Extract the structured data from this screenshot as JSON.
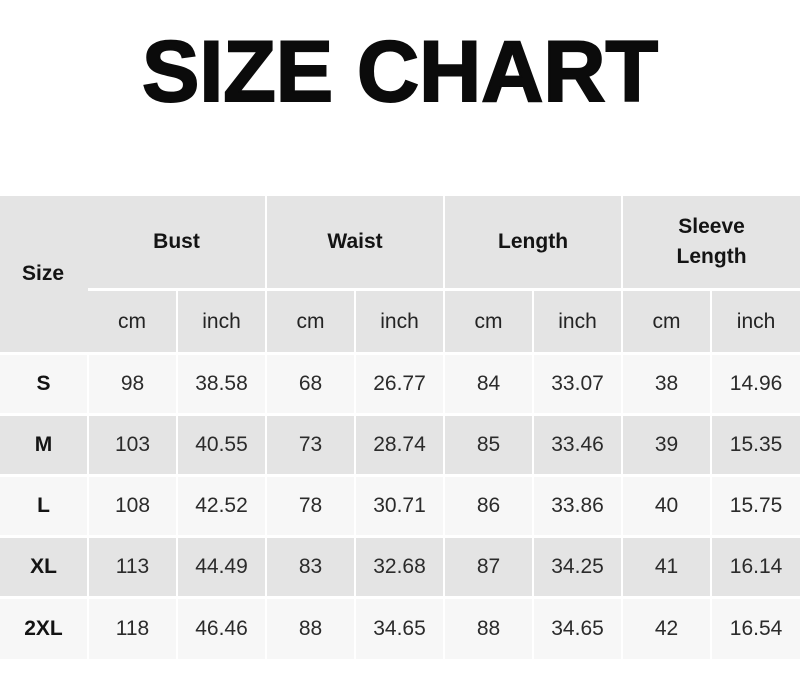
{
  "title": "SIZE CHART",
  "colors": {
    "page_bg": "#ffffff",
    "header_bg": "#e4e4e4",
    "row_light_bg": "#f7f7f7",
    "row_gray_bg": "#e4e4e4",
    "separator": "#ffffff",
    "text": "#1a1a1a"
  },
  "table": {
    "size_col_header": "Size",
    "groups": [
      {
        "label": "Bust"
      },
      {
        "label": "Waist"
      },
      {
        "label": "Length"
      },
      {
        "label": "Sleeve Length"
      }
    ],
    "unit_headers": [
      "cm",
      "inch",
      "cm",
      "inch",
      "cm",
      "inch",
      "cm",
      "inch"
    ],
    "rows": [
      {
        "size": "S",
        "cells": [
          "98",
          "38.58",
          "68",
          "26.77",
          "84",
          "33.07",
          "38",
          "14.96"
        ]
      },
      {
        "size": "M",
        "cells": [
          "103",
          "40.55",
          "73",
          "28.74",
          "85",
          "33.46",
          "39",
          "15.35"
        ]
      },
      {
        "size": "L",
        "cells": [
          "108",
          "42.52",
          "78",
          "30.71",
          "86",
          "33.86",
          "40",
          "15.75"
        ]
      },
      {
        "size": "XL",
        "cells": [
          "113",
          "44.49",
          "83",
          "32.68",
          "87",
          "34.25",
          "41",
          "16.14"
        ]
      },
      {
        "size": "2XL",
        "cells": [
          "118",
          "46.46",
          "88",
          "34.65",
          "88",
          "34.65",
          "42",
          "16.54"
        ]
      }
    ]
  },
  "chart_data": {
    "type": "table",
    "title": "SIZE CHART",
    "columns": [
      "Size",
      "Bust cm",
      "Bust inch",
      "Waist cm",
      "Waist inch",
      "Length cm",
      "Length inch",
      "Sleeve Length cm",
      "Sleeve Length inch"
    ],
    "rows": [
      [
        "S",
        98,
        38.58,
        68,
        26.77,
        84,
        33.07,
        38,
        14.96
      ],
      [
        "M",
        103,
        40.55,
        73,
        28.74,
        85,
        33.46,
        39,
        15.35
      ],
      [
        "L",
        108,
        42.52,
        78,
        30.71,
        86,
        33.86,
        40,
        15.75
      ],
      [
        "XL",
        113,
        44.49,
        83,
        32.68,
        87,
        34.25,
        41,
        16.14
      ],
      [
        "2XL",
        118,
        46.46,
        88,
        34.65,
        88,
        34.65,
        42,
        16.54
      ]
    ]
  }
}
